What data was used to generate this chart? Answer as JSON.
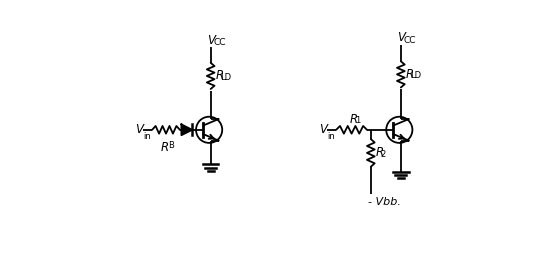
{
  "bg_color": "#ffffff",
  "line_color": "#000000",
  "lw": 1.3,
  "fig_width": 5.35,
  "fig_height": 2.54,
  "dpi": 100,
  "c1_vcc_label": "VCC",
  "c1_rld_label": "RLD",
  "c1_vin_label": "Vin",
  "c1_rb_label": "RB",
  "c2_vcc_label": "VCC",
  "c2_rld_label": "RLD",
  "c2_vin_label": "Vin",
  "c2_r1_label": "R1",
  "c2_r2_label": "R2",
  "c2_vbb_label": "- Vbb."
}
